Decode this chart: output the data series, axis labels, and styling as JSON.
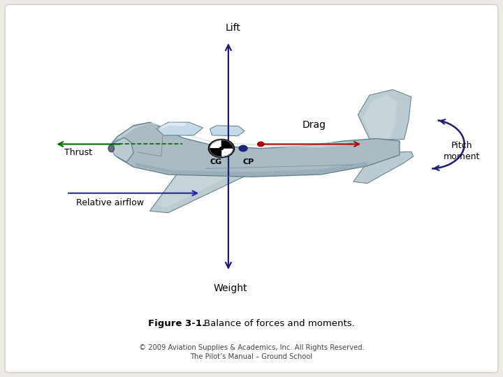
{
  "background_color": "#ede9e4",
  "inner_bg_color": "#ffffff",
  "title_bold": "Figure 3-1.",
  "title_normal": " Balance of forces and moments.",
  "caption_line1": "© 2009 Aviation Supplies & Academics, Inc. All Rights Reserved.",
  "caption_line2": "The Pilot’s Manual – Ground School",
  "lift_label": "Lift",
  "weight_label": "Weight",
  "thrust_label": "Thrust",
  "drag_label": "Drag",
  "airflow_label": "Relative airflow",
  "pitch_label1": "Pitch",
  "pitch_label2": "moment",
  "cg_label": "CG",
  "cp_label": "CP",
  "arrow_color": "#1c1c70",
  "thrust_color": "#006600",
  "drag_color": "#aa0000",
  "airflow_color": "#2222aa",
  "body_base": "#aabbc4",
  "body_light": "#d0dde2",
  "body_dark": "#7a96a2",
  "body_mid": "#bccbd2",
  "win_color": "#c5dae8",
  "edge_color": "#5a7a88"
}
